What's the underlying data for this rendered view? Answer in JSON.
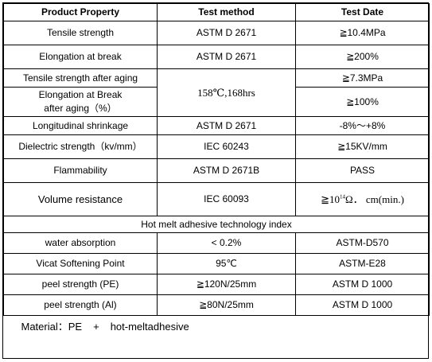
{
  "headers": {
    "property": "Product Property",
    "method": "Test method",
    "date": "Test Date"
  },
  "rows": [
    {
      "property": "Tensile strength",
      "method": "ASTM  D 2671",
      "value": "≧10.4MPa"
    },
    {
      "property": "Elongation at break",
      "method": "ASTM  D 2671",
      "value": "≧200%"
    },
    {
      "property": "Tensile strength after aging",
      "method": "158℃,168hrs",
      "value": "≧7.3MPa"
    },
    {
      "property_line1": "Elongation at Break",
      "property_line2": "after aging（%）",
      "value": "≧100%"
    },
    {
      "property": "Longitudinal shrinkage",
      "method": "ASTM  D 2671",
      "value": "-8%～+8%"
    },
    {
      "property": "Dielectric strength（kv/mm）",
      "method": "IEC 60243",
      "value": "≧15KV/mm"
    },
    {
      "property": "Flammability",
      "method": "ASTM  D 2671B",
      "value": "PASS"
    },
    {
      "property": "Volume resistance",
      "method": "IEC 60093",
      "value_prefix": "≧10",
      "value_exp": "14",
      "value_suffix": "Ω． cm(min.)"
    }
  ],
  "adhesive": {
    "title": "Hot melt adhesive technology index",
    "rows": [
      {
        "property": "water absorption",
        "value": "< 0.2%",
        "method": "ASTM-D570"
      },
      {
        "property": "Vicat Softening Point",
        "value": "95℃",
        "method": "ASTM-E28"
      },
      {
        "property": "peel strength (PE)",
        "value": "≧120N/25mm",
        "method": "ASTM D 1000"
      },
      {
        "property": "peel strength (Al)",
        "value": "≧80N/25mm",
        "method": "ASTM D 1000"
      }
    ]
  },
  "footer": {
    "label": "Material：PE",
    "plus": "+",
    "material": "hot-meltadhesive"
  }
}
